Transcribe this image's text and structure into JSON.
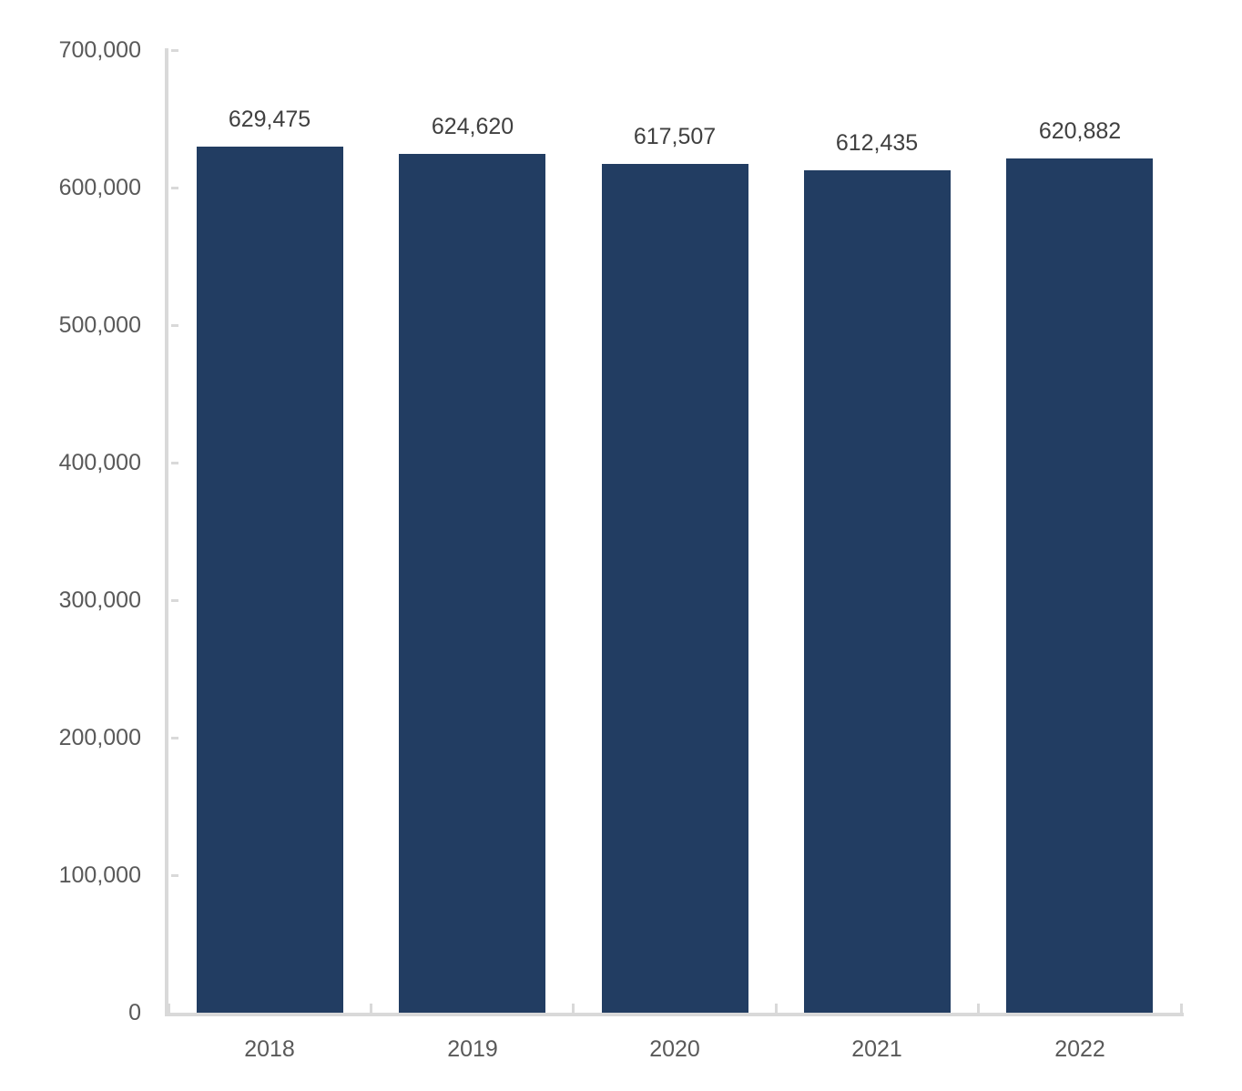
{
  "chart_data": {
    "type": "bar",
    "categories": [
      "2018",
      "2019",
      "2020",
      "2021",
      "2022"
    ],
    "values": [
      629475,
      624620,
      617507,
      612435,
      620882
    ],
    "value_labels": [
      "629,475",
      "624,620",
      "617,507",
      "612,435",
      "620,882"
    ],
    "title": "",
    "xlabel": "",
    "ylabel": "",
    "ylim": [
      0,
      700000
    ],
    "ytick_step": 100000,
    "ytick_labels": [
      "0",
      "100,000",
      "200,000",
      "300,000",
      "400,000",
      "500,000",
      "600,000",
      "700,000"
    ],
    "grid": false,
    "legend": false,
    "colors": {
      "bar": "#223D62",
      "axis_line": "#D9D9D9",
      "tick_label": "#595959",
      "data_label": "#404040",
      "background": "#FFFFFF"
    }
  }
}
